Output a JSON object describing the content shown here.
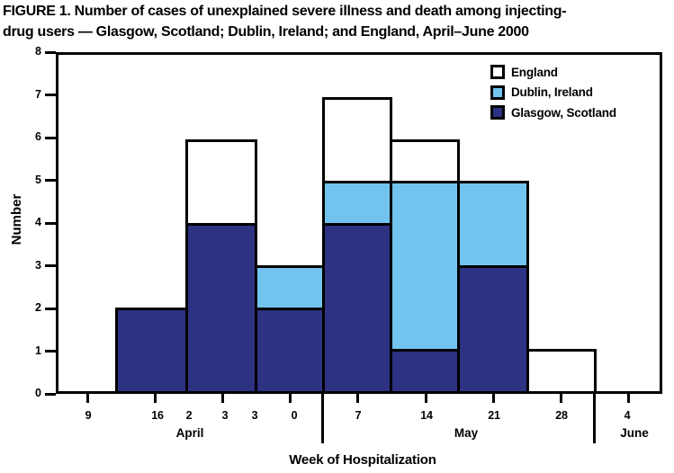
{
  "title": {
    "line1": "FIGURE 1. Number of cases of unexplained severe illness and death among injecting-",
    "line2": "drug users — Glasgow, Scotland; Dublin, Ireland; and England, April–June 2000"
  },
  "chart_data": {
    "type": "bar",
    "stacked": true,
    "title": "FIGURE 1. Number of cases of unexplained severe illness and death among injecting-drug users — Glasgow, Scotland; Dublin, Ireland; and England, April–June 2000",
    "xlabel": "Week of Hospitalization",
    "ylabel": "Number",
    "ylim": [
      0,
      8
    ],
    "grid": false,
    "y_tick_labels": [
      "8",
      "7",
      "6",
      "5",
      "4",
      "3",
      "2",
      "1",
      "0"
    ],
    "categories": [
      "April 16",
      "April 23",
      "April 30",
      "May 7",
      "May 14",
      "May 21",
      "May 28"
    ],
    "series": [
      {
        "name": "Glasgow, Scotland",
        "color": "#2E3282",
        "values": [
          2,
          4,
          2,
          4,
          1,
          3,
          0
        ]
      },
      {
        "name": "Dublin, Ireland",
        "color": "#72C4EF",
        "values": [
          0,
          0,
          1,
          1,
          4,
          2,
          0
        ]
      },
      {
        "name": "England",
        "color": "#FFFFFF",
        "values": [
          0,
          2,
          0,
          2,
          1,
          0,
          1
        ]
      }
    ],
    "bar_totals": [
      2,
      6,
      3,
      7,
      6,
      5,
      1
    ],
    "legend": {
      "position": "top-right-inside",
      "entries": [
        {
          "label": "England",
          "color": "#FFFFFF"
        },
        {
          "label": "Dublin, Ireland",
          "color": "#72C4EF"
        },
        {
          "label": "Glasgow, Scotland",
          "color": "#2E3282"
        }
      ]
    },
    "x_axis": {
      "displayed_tick_labels": [
        "9",
        "16",
        "2",
        "3",
        "3",
        "0",
        "7",
        "14",
        "21",
        "28",
        "4"
      ],
      "month_labels": [
        "April",
        "May",
        "June"
      ]
    }
  },
  "colors": {
    "axis": "#000000",
    "background": "#FFFFFF"
  }
}
